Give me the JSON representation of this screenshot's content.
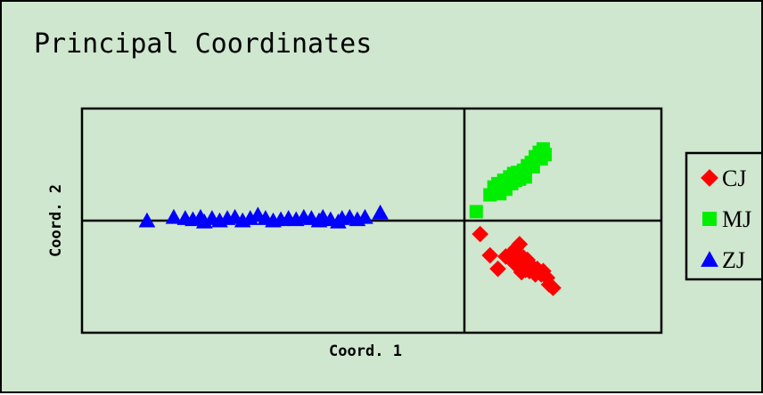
{
  "chart_data": {
    "type": "scatter",
    "title": "Principal Coordinates",
    "xlabel": "Coord. 1",
    "ylabel": "Coord. 2",
    "xlim": [
      -1.0,
      1.0
    ],
    "ylim": [
      -1.0,
      1.0
    ],
    "grid": false,
    "axes_lines_at_zero": true,
    "legend_position": "right",
    "series": [
      {
        "name": "CJ",
        "marker": "diamond",
        "color": "#ff0000",
        "points": [
          {
            "x": 0.08,
            "y": -0.12
          },
          {
            "x": 0.13,
            "y": -0.31
          },
          {
            "x": 0.17,
            "y": -0.43
          },
          {
            "x": 0.21,
            "y": -0.32
          },
          {
            "x": 0.23,
            "y": -0.34
          },
          {
            "x": 0.24,
            "y": -0.29
          },
          {
            "x": 0.25,
            "y": -0.36
          },
          {
            "x": 0.26,
            "y": -0.25
          },
          {
            "x": 0.27,
            "y": -0.3
          },
          {
            "x": 0.27,
            "y": -0.41
          },
          {
            "x": 0.28,
            "y": -0.21
          },
          {
            "x": 0.28,
            "y": -0.37
          },
          {
            "x": 0.29,
            "y": -0.46
          },
          {
            "x": 0.3,
            "y": -0.33
          },
          {
            "x": 0.31,
            "y": -0.44
          },
          {
            "x": 0.32,
            "y": -0.35
          },
          {
            "x": 0.33,
            "y": -0.45
          },
          {
            "x": 0.35,
            "y": -0.42
          },
          {
            "x": 0.36,
            "y": -0.48
          },
          {
            "x": 0.37,
            "y": -0.43
          },
          {
            "x": 0.39,
            "y": -0.48
          },
          {
            "x": 0.4,
            "y": -0.45
          },
          {
            "x": 0.42,
            "y": -0.51
          },
          {
            "x": 0.43,
            "y": -0.57
          },
          {
            "x": 0.45,
            "y": -0.6
          }
        ]
      },
      {
        "name": "MJ",
        "marker": "square",
        "color": "#00ee00",
        "points": [
          {
            "x": 0.06,
            "y": 0.08
          },
          {
            "x": 0.13,
            "y": 0.23
          },
          {
            "x": 0.15,
            "y": 0.3
          },
          {
            "x": 0.17,
            "y": 0.33
          },
          {
            "x": 0.18,
            "y": 0.24
          },
          {
            "x": 0.19,
            "y": 0.31
          },
          {
            "x": 0.2,
            "y": 0.36
          },
          {
            "x": 0.21,
            "y": 0.28
          },
          {
            "x": 0.22,
            "y": 0.34
          },
          {
            "x": 0.23,
            "y": 0.39
          },
          {
            "x": 0.24,
            "y": 0.33
          },
          {
            "x": 0.25,
            "y": 0.42
          },
          {
            "x": 0.26,
            "y": 0.36
          },
          {
            "x": 0.27,
            "y": 0.43
          },
          {
            "x": 0.28,
            "y": 0.37
          },
          {
            "x": 0.3,
            "y": 0.45
          },
          {
            "x": 0.31,
            "y": 0.39
          },
          {
            "x": 0.32,
            "y": 0.49
          },
          {
            "x": 0.34,
            "y": 0.52
          },
          {
            "x": 0.35,
            "y": 0.48
          },
          {
            "x": 0.36,
            "y": 0.57
          },
          {
            "x": 0.38,
            "y": 0.61
          },
          {
            "x": 0.39,
            "y": 0.55
          },
          {
            "x": 0.4,
            "y": 0.64
          },
          {
            "x": 0.41,
            "y": 0.59
          }
        ]
      },
      {
        "name": "ZJ",
        "marker": "triangle",
        "color": "#0000ff",
        "points": [
          {
            "x": -0.83,
            "y": 0.0
          },
          {
            "x": -0.76,
            "y": 0.03
          },
          {
            "x": -0.73,
            "y": 0.02
          },
          {
            "x": -0.71,
            "y": 0.01
          },
          {
            "x": -0.69,
            "y": 0.03
          },
          {
            "x": -0.68,
            "y": -0.01
          },
          {
            "x": -0.66,
            "y": 0.02
          },
          {
            "x": -0.64,
            "y": 0.0
          },
          {
            "x": -0.62,
            "y": 0.02
          },
          {
            "x": -0.6,
            "y": 0.03
          },
          {
            "x": -0.58,
            "y": 0.0
          },
          {
            "x": -0.56,
            "y": 0.02
          },
          {
            "x": -0.54,
            "y": 0.05
          },
          {
            "x": -0.52,
            "y": 0.02
          },
          {
            "x": -0.5,
            "y": 0.0
          },
          {
            "x": -0.48,
            "y": 0.01
          },
          {
            "x": -0.46,
            "y": 0.02
          },
          {
            "x": -0.44,
            "y": 0.01
          },
          {
            "x": -0.42,
            "y": 0.03
          },
          {
            "x": -0.4,
            "y": 0.02
          },
          {
            "x": -0.38,
            "y": 0.0
          },
          {
            "x": -0.37,
            "y": 0.03
          },
          {
            "x": -0.35,
            "y": 0.01
          },
          {
            "x": -0.33,
            "y": -0.01
          },
          {
            "x": -0.32,
            "y": 0.02
          },
          {
            "x": -0.3,
            "y": 0.03
          },
          {
            "x": -0.28,
            "y": 0.01
          },
          {
            "x": -0.26,
            "y": 0.03
          },
          {
            "x": -0.22,
            "y": 0.07
          }
        ]
      }
    ]
  },
  "colors": {
    "background": "#cfe6cf",
    "axis": "#000000"
  }
}
